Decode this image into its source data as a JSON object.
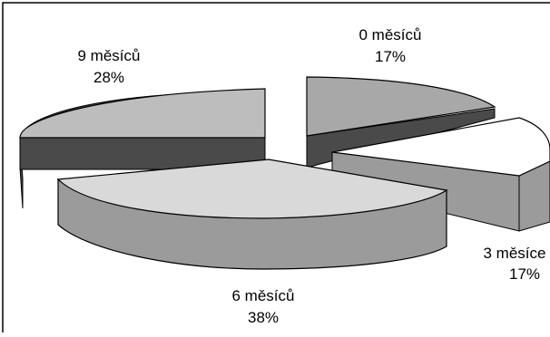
{
  "chart_data": {
    "type": "pie",
    "categories": [
      "0 měsíců",
      "3 měsíce",
      "6 měsíců",
      "9 měsíců"
    ],
    "values": [
      17,
      17,
      38,
      28
    ],
    "value_labels": [
      "17%",
      "17%",
      "38%",
      "28%"
    ],
    "title": "",
    "legend": "none",
    "three_d": true,
    "exploded": true,
    "colors": {
      "slice_0": "#a8a8a8",
      "slice_3": "#ffffff",
      "slice_6": "#d9d9d9",
      "slice_9": "#bdbdbd",
      "side_light": "#9b9b9b",
      "side_dark": "#4a4a4a",
      "outline": "#000000"
    }
  }
}
